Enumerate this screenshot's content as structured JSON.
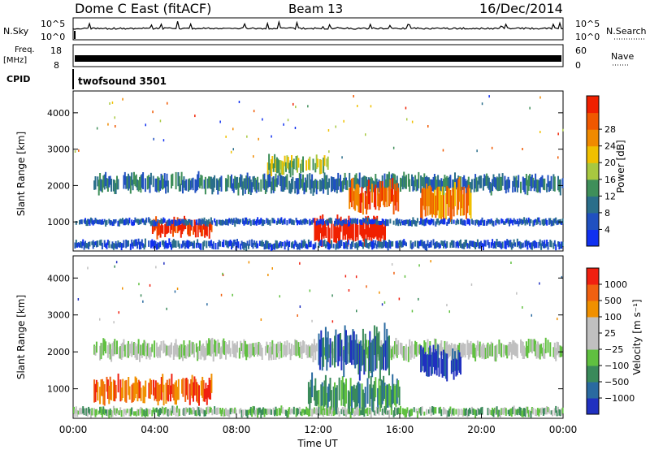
{
  "header": {
    "station": "Dome C East (fitACF)",
    "beam": "Beam 13",
    "date": "16/Dec/2014"
  },
  "top_panels": {
    "nsky_label": "N.Sky",
    "nsky_ticks": [
      "10^5",
      "10^0"
    ],
    "nsearch_label": "N.Search",
    "nsearch_ticks": [
      "10^5",
      "10^0"
    ],
    "freq_label": "Freq.",
    "freq_unit": "[MHz]",
    "freq_ticks": [
      "18",
      "8"
    ],
    "nave_label": "Nave",
    "nave_ticks": [
      "60",
      "0"
    ],
    "cpid_label": "CPID",
    "cpid_value": "twofsound 3501"
  },
  "chart_data": [
    {
      "type": "heatmap",
      "name": "power",
      "ylabel": "Slant Range [km]",
      "ylim": [
        200,
        4600
      ],
      "y_ticks": [
        1000,
        2000,
        3000,
        4000
      ],
      "xlim": [
        0,
        24
      ],
      "colorbar": {
        "label": "Power [dB]",
        "ticks": [
          "4",
          "8",
          "12",
          "16",
          "20",
          "24",
          "28"
        ],
        "colors": [
          "#1030f0",
          "#2050c0",
          "#2a6e8a",
          "#3f8f5a",
          "#a8c840",
          "#f0c000",
          "#f08a00",
          "#f05800",
          "#f02000"
        ]
      },
      "blobs": [
        {
          "t0": 1.0,
          "t1": 24.0,
          "r0": 1800,
          "r1": 2300,
          "level": 2
        },
        {
          "t0": 3.8,
          "t1": 6.8,
          "r0": 600,
          "r1": 1100,
          "level": 8
        },
        {
          "t0": 11.8,
          "t1": 15.3,
          "r0": 400,
          "r1": 1100,
          "level": 9
        },
        {
          "t0": 13.5,
          "t1": 16.0,
          "r0": 1300,
          "r1": 2100,
          "level": 7
        },
        {
          "t0": 17.0,
          "t1": 19.5,
          "r0": 1100,
          "r1": 2100,
          "level": 6
        },
        {
          "t0": 0.0,
          "t1": 24.0,
          "r0": 900,
          "r1": 1100,
          "level": 1
        },
        {
          "t0": 0.0,
          "t1": 24.0,
          "r0": 250,
          "r1": 500,
          "level": 1
        },
        {
          "t0": 9.5,
          "t1": 12.5,
          "r0": 2300,
          "r1": 2800,
          "level": 4
        }
      ]
    },
    {
      "type": "heatmap",
      "name": "velocity",
      "ylabel": "Slant Range [km]",
      "ylim": [
        200,
        4600
      ],
      "y_ticks": [
        1000,
        2000,
        3000,
        4000
      ],
      "xlim": [
        0,
        24
      ],
      "x_ticks": [
        "00:00",
        "04:00",
        "08:00",
        "12:00",
        "16:00",
        "20:00",
        "00:00"
      ],
      "xlabel": "Time UT",
      "colorbar": {
        "label": "Velocity [m s⁻¹]",
        "ticks": [
          "1000",
          "500",
          "100",
          "25",
          "−25",
          "−100",
          "−500",
          "−1000"
        ],
        "colors": [
          "#2030c0",
          "#2a6aa0",
          "#3a8a5a",
          "#60c040",
          "#c0c0c0",
          "#c0c0c0",
          "#f09000",
          "#f06010",
          "#f02010"
        ]
      },
      "blobs": [
        {
          "t0": 1.0,
          "t1": 24.0,
          "r0": 1800,
          "r1": 2300,
          "level": 4
        },
        {
          "t0": 1.0,
          "t1": 6.8,
          "r0": 600,
          "r1": 1300,
          "level": 7
        },
        {
          "t0": 11.5,
          "t1": 16.0,
          "r0": 400,
          "r1": 1300,
          "level": 2
        },
        {
          "t0": 12.0,
          "t1": 15.5,
          "r0": 1400,
          "r1": 2600,
          "level": 1
        },
        {
          "t0": 17.0,
          "t1": 19.0,
          "r0": 1300,
          "r1": 2100,
          "level": 0
        },
        {
          "t0": 0.0,
          "t1": 24.0,
          "r0": 250,
          "r1": 500,
          "level": 3
        }
      ]
    }
  ]
}
